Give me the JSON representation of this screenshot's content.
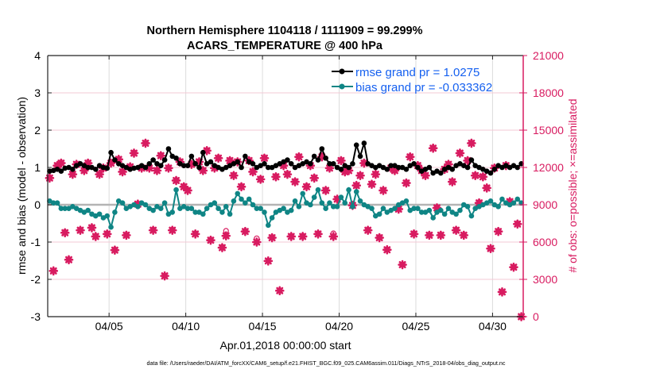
{
  "chart_data": {
    "type": "line",
    "title": "Northern Hemisphere 1104118 / 1111909 = 99.299%",
    "subtitle": "ACARS_TEMPERATURE @ 400 hPa",
    "xlabel": "Apr.01,2018 00:00:00 start",
    "ylabel": "rmse and bias (model - observation)",
    "ylabel_right": "# of obs: o=possible; ×=assimilated",
    "footnote": "data file: /Users/raeder/DAI/ATM_forcXX/CAM6_setup/f.e21.FHIST_BGC.f09_025.CAM6assim.011/Diags_NTrS_2018-04/obs_diag_output.nc",
    "xlim_days": [
      0,
      31
    ],
    "x_step_days": 0.25,
    "xticks": [
      {
        "day": 4,
        "label": "04/05"
      },
      {
        "day": 9,
        "label": "04/10"
      },
      {
        "day": 14,
        "label": "04/15"
      },
      {
        "day": 19,
        "label": "04/20"
      },
      {
        "day": 24,
        "label": "04/25"
      },
      {
        "day": 29,
        "label": "04/30"
      }
    ],
    "ylim": [
      -3,
      4
    ],
    "yticks": [
      "-3",
      "-2",
      "-1",
      "0",
      "1",
      "2",
      "3",
      "4"
    ],
    "ylim_right": [
      0,
      21000
    ],
    "yticks_right": [
      "0",
      "3000",
      "6000",
      "9000",
      "12000",
      "15000",
      "18000",
      "21000"
    ],
    "legend": {
      "placement": "top-right",
      "entries": [
        "rmse grand pr = 1.0275",
        "bias grand pr = -0.033362"
      ]
    },
    "colors": {
      "rmse": "#000000",
      "bias": "#0f8585",
      "obs": "#d81b60",
      "legend_text": "#1560f0",
      "zero": "#b4b4b4"
    },
    "series": [
      {
        "name": "rmse",
        "values": [
          0.9,
          0.92,
          0.95,
          0.9,
          0.98,
          1.0,
          0.95,
          1.05,
          1.1,
          1.05,
          1.0,
          1.0,
          0.95,
          1.05,
          1.0,
          0.98,
          1.4,
          1.2,
          1.1,
          1.05,
          1.0,
          0.95,
          0.98,
          1.0,
          1.05,
          1.0,
          1.1,
          1.2,
          1.1,
          1.05,
          1.2,
          1.5,
          1.3,
          1.25,
          1.1,
          1.05,
          1.05,
          1.3,
          1.1,
          1.0,
          1.4,
          1.1,
          1.15,
          1.05,
          1.0,
          0.95,
          1.0,
          1.05,
          1.1,
          1.15,
          1.0,
          1.3,
          1.15,
          1.1,
          1.0,
          1.05,
          1.1,
          1.0,
          1.0,
          1.05,
          1.1,
          1.15,
          1.2,
          1.1,
          1.0,
          1.05,
          1.1,
          1.15,
          1.1,
          1.3,
          1.2,
          1.5,
          1.25,
          1.1,
          1.1,
          1.0,
          0.95,
          1.05,
          1.0,
          1.1,
          1.6,
          1.3,
          1.65,
          1.1,
          1.05,
          1.0,
          1.05,
          1.0,
          0.95,
          1.05,
          1.05,
          1.0,
          1.0,
          0.95,
          1.05,
          1.1,
          1.0,
          0.9,
          0.95,
          1.0,
          0.85,
          0.9,
          0.85,
          0.95,
          1.0,
          0.95,
          1.05,
          1.1,
          1.05,
          1.0,
          1.2,
          1.05,
          1.0,
          0.95,
          0.9,
          0.85,
          0.95,
          1.05,
          1.0,
          1.05,
          1.0,
          1.05,
          1.0,
          1.1
        ]
      },
      {
        "name": "bias",
        "values": [
          0.1,
          0.05,
          0.05,
          -0.1,
          -0.1,
          -0.1,
          -0.05,
          -0.1,
          -0.15,
          -0.2,
          -0.15,
          -0.25,
          -0.3,
          -0.25,
          -0.35,
          -0.3,
          -0.6,
          -0.2,
          0.1,
          0.05,
          -0.1,
          -0.05,
          0.0,
          -0.05,
          0.05,
          0.0,
          -0.1,
          -0.15,
          -0.05,
          -0.1,
          0.05,
          -0.25,
          -0.2,
          0.4,
          -0.1,
          -0.05,
          -0.1,
          -0.1,
          -0.2,
          -0.2,
          -0.25,
          -0.1,
          0.0,
          0.05,
          -0.1,
          -0.2,
          -0.05,
          -0.25,
          0.1,
          0.3,
          0.15,
          0.05,
          0.15,
          0.0,
          -0.1,
          -0.1,
          -0.2,
          -0.55,
          -0.35,
          -0.2,
          -0.15,
          -0.1,
          -0.2,
          -0.15,
          0.1,
          -0.05,
          0.3,
          0.05,
          0.0,
          0.2,
          0.4,
          0.05,
          -0.1,
          0.05,
          -0.05,
          -0.05,
          0.2,
          0.05,
          0.4,
          -0.05,
          0.35,
          0.1,
          0.0,
          -0.05,
          -0.1,
          -0.3,
          -0.25,
          -0.1,
          -0.2,
          -0.15,
          -0.1,
          0.0,
          0.05,
          0.1,
          -0.15,
          -0.1,
          -0.1,
          -0.2,
          -0.2,
          -0.15,
          -0.35,
          -0.2,
          -0.15,
          -0.25,
          -0.1,
          -0.2,
          -0.25,
          -0.15,
          0.0,
          -0.05,
          -0.3,
          -0.1,
          -0.05,
          0.0,
          0.05,
          0.1,
          0.0,
          -0.05,
          0.15,
          0.05,
          0.0,
          0.05,
          0.15,
          0.05
        ]
      },
      {
        "name": "obs_possible",
        "axis": "right",
        "values": [
          11200,
          3700,
          12200,
          12400,
          6800,
          4600,
          11500,
          12300,
          7000,
          11800,
          12400,
          7200,
          6500,
          11500,
          12000,
          6700,
          12400,
          5400,
          12700,
          11700,
          6600,
          12100,
          13200,
          9100,
          12000,
          14000,
          12000,
          7000,
          11800,
          13000,
          3300,
          12000,
          7000,
          11000,
          12500,
          10500,
          10200,
          12300,
          6700,
          12500,
          11800,
          13400,
          6200,
          12000,
          12800,
          5600,
          6900,
          12600,
          11400,
          12500,
          10500,
          6900,
          12600,
          11700,
          6300,
          11100,
          12800,
          4500,
          6400,
          11300,
          2100,
          12200,
          11500,
          6500,
          10900,
          12900,
          6500,
          10500,
          12200,
          11200,
          6700,
          12900,
          10200,
          12000,
          6700,
          9500,
          12600,
          11700,
          11800,
          9000,
          10600,
          11400,
          12400,
          7000,
          10700,
          11500,
          6400,
          10200,
          5400,
          12000,
          11800,
          8700,
          4200,
          10800,
          12900,
          6700,
          12200,
          11800,
          11400,
          6600,
          13600,
          8800,
          6600,
          11900,
          12300,
          10900,
          7000,
          13200,
          6600,
          12600,
          14000,
          11400,
          9200,
          11300,
          10400,
          5500,
          12000,
          6900,
          2000,
          12200,
          9300,
          4000,
          7500,
          0
        ]
      },
      {
        "name": "obs_assimilated",
        "axis": "right",
        "values": [
          11150,
          3680,
          12150,
          12350,
          6750,
          4580,
          11450,
          12250,
          6950,
          11750,
          12350,
          7150,
          6450,
          11450,
          11950,
          6650,
          12350,
          5350,
          12650,
          11650,
          6550,
          12050,
          13150,
          9050,
          11950,
          13950,
          11950,
          6950,
          11750,
          12950,
          3280,
          11950,
          6950,
          10950,
          12450,
          10450,
          10150,
          12250,
          6650,
          12450,
          11750,
          13350,
          6150,
          11950,
          12750,
          5550,
          6500,
          12550,
          11350,
          12450,
          10450,
          6850,
          12550,
          11650,
          6000,
          11050,
          12750,
          4480,
          6350,
          11250,
          2090,
          12150,
          11450,
          6450,
          10850,
          12850,
          6450,
          10450,
          12150,
          11150,
          6650,
          12850,
          10150,
          11950,
          6450,
          9450,
          12550,
          11650,
          11750,
          8950,
          10550,
          11350,
          12350,
          6950,
          10650,
          11450,
          6350,
          10150,
          5380,
          11950,
          11750,
          8650,
          4180,
          10750,
          12850,
          6650,
          12150,
          11750,
          11350,
          6550,
          13550,
          8750,
          6550,
          11850,
          12250,
          10850,
          6950,
          13150,
          6550,
          12550,
          13950,
          11350,
          9150,
          11250,
          10350,
          5480,
          11950,
          6850,
          1990,
          12150,
          9250,
          3980,
          7450,
          0
        ]
      }
    ]
  }
}
